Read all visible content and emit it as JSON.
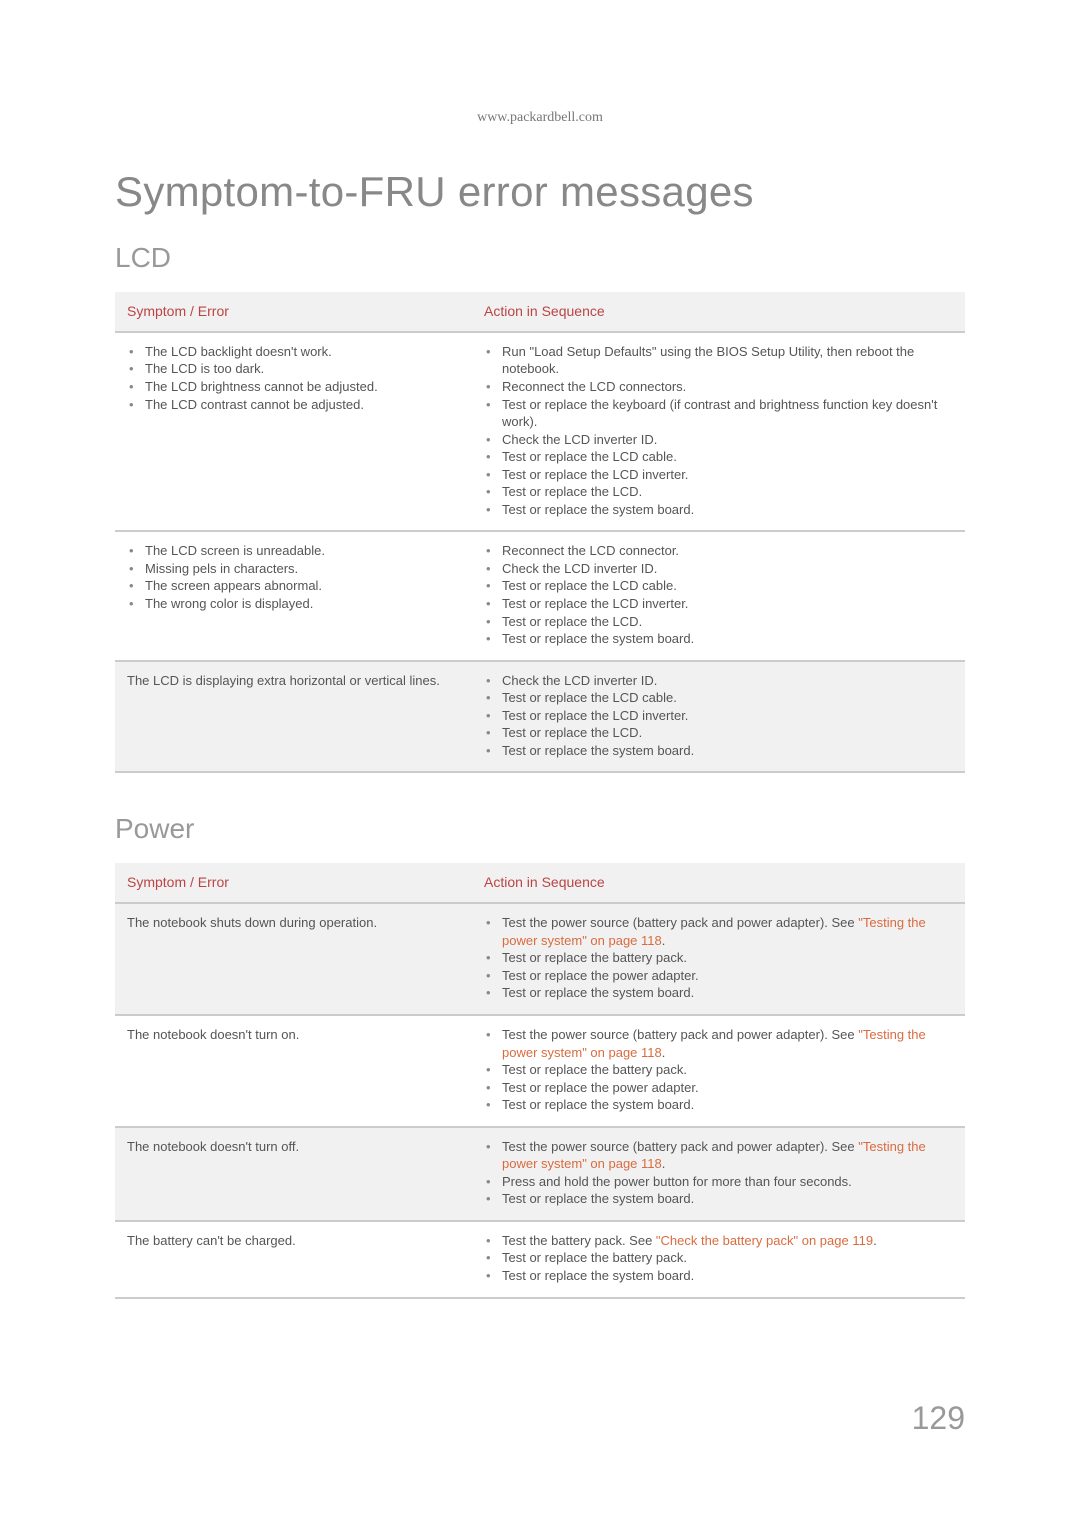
{
  "url": "www.packardbell.com",
  "title": "Symptom-to-FRU error messages",
  "pageNumber": "129",
  "sections": [
    {
      "heading": "LCD",
      "headers": [
        "Symptom / Error",
        "Action in Sequence"
      ],
      "rows": [
        {
          "shaded": false,
          "symptom_list": [
            "The LCD backlight doesn't work.",
            "The LCD is too dark.",
            "The LCD brightness cannot be adjusted.",
            "The LCD contrast cannot be adjusted."
          ],
          "action_list": [
            {
              "t": "Run \"Load Setup Defaults\" using the BIOS Setup Utility, then reboot the notebook."
            },
            {
              "t": "Reconnect the LCD connectors."
            },
            {
              "t": "Test or replace the keyboard (if contrast and brightness function key doesn't work)."
            },
            {
              "t": "Check the LCD inverter ID."
            },
            {
              "t": "Test or replace the LCD cable."
            },
            {
              "t": "Test or replace the LCD inverter."
            },
            {
              "t": "Test or replace the LCD."
            },
            {
              "t": "Test or replace the system board."
            }
          ]
        },
        {
          "shaded": false,
          "symptom_list": [
            "The LCD screen is unreadable.",
            "Missing pels in characters.",
            "The screen appears abnormal.",
            "The wrong color is displayed."
          ],
          "action_list": [
            {
              "t": "Reconnect the LCD connector."
            },
            {
              "t": "Check the LCD inverter ID."
            },
            {
              "t": "Test or replace the LCD cable."
            },
            {
              "t": "Test or replace the LCD inverter."
            },
            {
              "t": "Test or replace the LCD."
            },
            {
              "t": "Test or replace the system board."
            }
          ]
        },
        {
          "shaded": true,
          "symptom_text": "The LCD is displaying extra horizontal or vertical lines.",
          "action_list": [
            {
              "t": "Check the LCD inverter ID."
            },
            {
              "t": "Test or replace the LCD cable."
            },
            {
              "t": "Test or replace the LCD inverter."
            },
            {
              "t": "Test or replace the LCD."
            },
            {
              "t": "Test or replace the system board."
            }
          ]
        }
      ]
    },
    {
      "heading": "Power",
      "headers": [
        "Symptom / Error",
        "Action in Sequence"
      ],
      "rows": [
        {
          "shaded": true,
          "symptom_text": "The notebook shuts down during operation.",
          "action_list": [
            {
              "t": "Test the power source (battery pack and power adapter). See ",
              "link": "\"Testing the power system\" on page 118",
              "after": "."
            },
            {
              "t": "Test or replace the battery pack."
            },
            {
              "t": "Test or replace the power adapter."
            },
            {
              "t": "Test or replace the system board."
            }
          ]
        },
        {
          "shaded": false,
          "symptom_text": "The notebook doesn't turn on.",
          "action_list": [
            {
              "t": "Test the power source (battery pack and power adapter). See ",
              "link": "\"Testing the power system\" on page 118",
              "after": "."
            },
            {
              "t": "Test or replace the battery pack."
            },
            {
              "t": "Test or replace the power adapter."
            },
            {
              "t": "Test or replace the system board."
            }
          ]
        },
        {
          "shaded": true,
          "symptom_text": "The notebook doesn't turn off.",
          "action_list": [
            {
              "t": "Test the power source (battery pack and power adapter). See ",
              "link": "\"Testing the power system\" on page 118",
              "after": "."
            },
            {
              "t": "Press and hold the power button for more than four seconds."
            },
            {
              "t": "Test or replace the system board."
            }
          ]
        },
        {
          "shaded": false,
          "symptom_text": "The battery can't be charged.",
          "action_list": [
            {
              "t": "Test the battery pack. See ",
              "link": "\"Check the battery pack\" on page 119",
              "after": "."
            },
            {
              "t": "Test or replace the battery pack."
            },
            {
              "t": "Test or replace the system board."
            }
          ]
        }
      ]
    }
  ]
}
